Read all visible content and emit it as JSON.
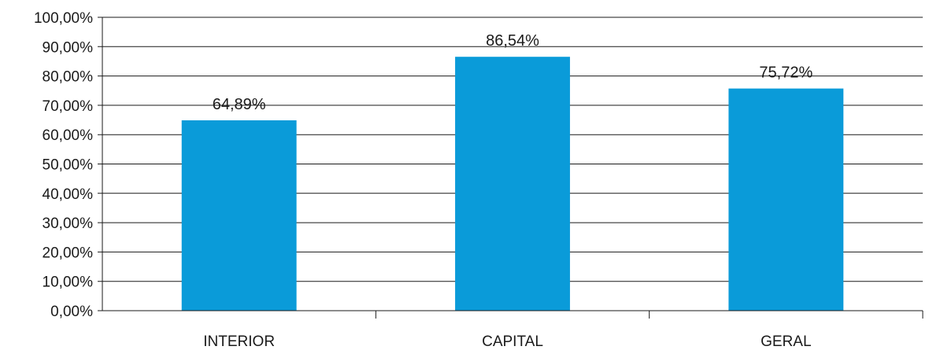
{
  "chart_data": {
    "type": "bar",
    "title": "",
    "xlabel": "",
    "ylabel": "",
    "categories": [
      "INTERIOR",
      "CAPITAL",
      "GERAL"
    ],
    "values": [
      64.89,
      86.54,
      75.72
    ],
    "data_labels": [
      "64,89%",
      "86,54%",
      "75,72%"
    ],
    "ylim": [
      0,
      100
    ],
    "y_ticks": [
      0,
      10,
      20,
      30,
      40,
      50,
      60,
      70,
      80,
      90,
      100
    ],
    "y_tick_labels": [
      "0,00%",
      "10,00%",
      "20,00%",
      "30,00%",
      "40,00%",
      "50,00%",
      "60,00%",
      "70,00%",
      "80,00%",
      "90,00%",
      "100,00%"
    ],
    "grid": true,
    "legend": "none",
    "colors": {
      "bar": "#0a9bd9",
      "grid": "#1a1a1a",
      "text": "#1a1a1a"
    }
  }
}
